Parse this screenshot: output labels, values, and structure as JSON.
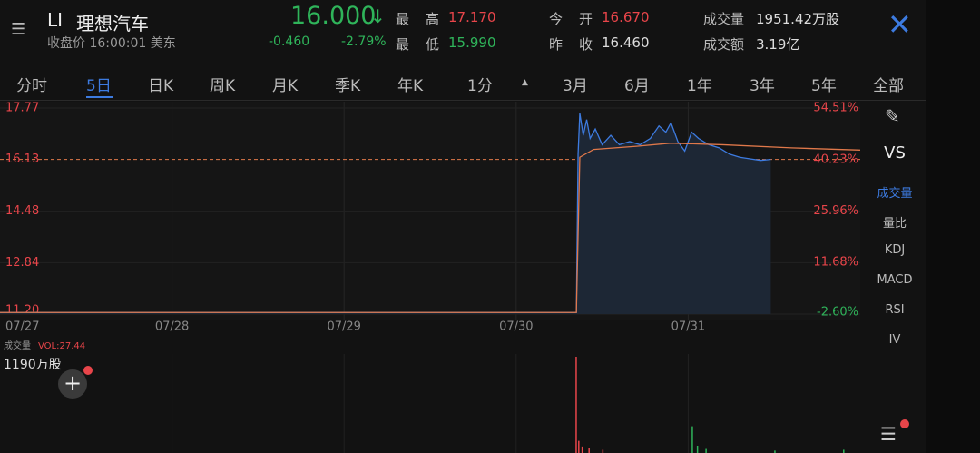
{
  "header": {
    "symbol": "LI",
    "name": "理想汽车",
    "status": "收盘价 16:00:01 美东",
    "price": "16.000",
    "change": "-0.460",
    "change_pct": "-2.79%",
    "stats": [
      {
        "label": "最高",
        "value": "17.170"
      },
      {
        "label": "最低",
        "value": "15.990"
      },
      {
        "label": "今开",
        "value": "16.670"
      },
      {
        "label": "昨收",
        "value": "16.460"
      },
      {
        "label": "成交量",
        "value": "1951.42万股"
      },
      {
        "label": "成交额",
        "value": "3.19亿"
      }
    ]
  },
  "tabs": [
    "分时",
    "5日",
    "日K",
    "周K",
    "月K",
    "季K",
    "年K",
    "1分",
    "3月",
    "6月",
    "1年",
    "3年",
    "5年",
    "全部"
  ],
  "sidebar": [
    "VS",
    "成交量",
    "量比",
    "KDJ",
    "MACD",
    "RSI",
    "IV"
  ],
  "chart_data": [
    {
      "type": "line",
      "xlim": [
        0,
        5
      ],
      "xticks": [
        {
          "value": 0,
          "label": "07/27"
        },
        {
          "value": 1,
          "label": "07/28"
        },
        {
          "value": 2,
          "label": "07/29"
        },
        {
          "value": 3,
          "label": "07/30"
        },
        {
          "value": 4,
          "label": "07/31"
        }
      ],
      "ylim": [
        11.2,
        17.77
      ],
      "yticks": [
        17.77,
        16.13,
        14.48,
        12.84,
        {
          "value": 11.2,
          "label": "11.20"
        }
      ],
      "y2lim": [
        -2.6,
        54.51
      ],
      "y2ticks": [
        {
          "value": 54.51,
          "label": "54.51%"
        },
        {
          "value": 40.23,
          "label": "40.23%"
        },
        {
          "value": 25.96,
          "label": "25.96%"
        },
        {
          "value": 11.68,
          "label": "11.68%"
        },
        {
          "value": -2.6,
          "label": "-2.60%"
        }
      ],
      "series": [
        {
          "color": "#3d7be0",
          "x": [
            0,
            3.35,
            3.36,
            3.37,
            3.39,
            3.41,
            3.43,
            3.46,
            3.5,
            3.55,
            3.6,
            3.66,
            3.72,
            3.78,
            3.83,
            3.87,
            3.9,
            3.94,
            3.98,
            4.02,
            4.06,
            4.12,
            4.18,
            4.24,
            4.3,
            4.36,
            4.42,
            4.48
          ],
          "values": [
            11.25,
            11.25,
            16.3,
            17.6,
            16.9,
            17.4,
            16.8,
            17.1,
            16.6,
            16.9,
            16.6,
            16.7,
            16.6,
            16.8,
            17.2,
            17.0,
            17.3,
            16.7,
            16.4,
            17.0,
            16.8,
            16.6,
            16.5,
            16.3,
            16.2,
            16.15,
            16.1,
            16.13
          ]
        },
        {
          "color": "#e0784a",
          "x": [
            0,
            3.35,
            3.37,
            3.45,
            3.7,
            3.9,
            4.2,
            4.6,
            5.0
          ],
          "values": [
            11.25,
            11.25,
            16.2,
            16.45,
            16.55,
            16.65,
            16.6,
            16.5,
            16.43
          ]
        }
      ]
    },
    {
      "type": "bar",
      "title": "成交量",
      "subtitle": "VOL:27.44",
      "max_label": "1190万股",
      "xlim": [
        0,
        5
      ],
      "ylim": [
        0,
        1190
      ],
      "color": "#e8454a",
      "x": [
        3.345,
        3.36,
        3.38,
        3.42,
        3.5,
        4.02,
        4.05,
        4.1,
        4.5,
        4.9
      ],
      "values": [
        1190,
        150,
        80,
        60,
        40,
        330,
        90,
        50,
        30,
        40
      ]
    }
  ]
}
